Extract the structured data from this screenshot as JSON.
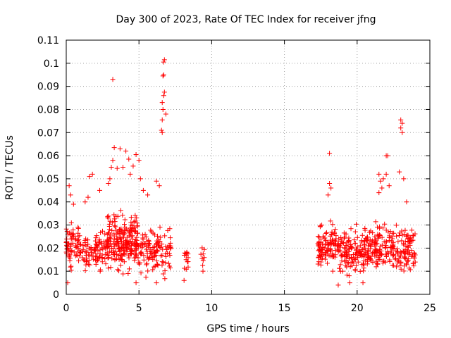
{
  "chart_data": {
    "type": "scatter",
    "title": "Day 300 of 2023, Rate Of TEC Index for receiver jfng",
    "xlabel": "GPS time / hours",
    "ylabel": "ROTI / TECUs",
    "xlim": [
      0,
      25
    ],
    "ylim": [
      0,
      0.11
    ],
    "xticks": [
      0,
      5,
      10,
      15,
      20,
      25
    ],
    "yticks": [
      0,
      0.01,
      0.02,
      0.03,
      0.04,
      0.05,
      0.06,
      0.07,
      0.08,
      0.09,
      0.1,
      0.11
    ],
    "grid": true,
    "marker": "+",
    "color": "#ff0000",
    "clusters": [
      {
        "x_range": [
          0.0,
          1.0
        ],
        "y_range": [
          0.007,
          0.035
        ],
        "count": 70
      },
      {
        "x_range": [
          1.1,
          2.2
        ],
        "y_range": [
          0.008,
          0.03
        ],
        "count": 60
      },
      {
        "x_range": [
          2.2,
          3.0
        ],
        "y_range": [
          0.008,
          0.032
        ],
        "count": 45
      },
      {
        "x_range": [
          2.8,
          5.0
        ],
        "y_range": [
          0.007,
          0.04
        ],
        "count": 220
      },
      {
        "x_range": [
          5.0,
          7.2
        ],
        "y_range": [
          0.006,
          0.033
        ],
        "count": 120
      },
      {
        "x_range": [
          8.0,
          8.4
        ],
        "y_range": [
          0.009,
          0.025
        ],
        "count": 14
      },
      {
        "x_range": [
          9.2,
          9.5
        ],
        "y_range": [
          0.011,
          0.024
        ],
        "count": 8
      },
      {
        "x_range": [
          17.3,
          19.0
        ],
        "y_range": [
          0.007,
          0.036
        ],
        "count": 130
      },
      {
        "x_range": [
          19.0,
          21.0
        ],
        "y_range": [
          0.006,
          0.033
        ],
        "count": 150
      },
      {
        "x_range": [
          21.0,
          24.0
        ],
        "y_range": [
          0.006,
          0.035
        ],
        "count": 200
      }
    ],
    "outliers": [
      {
        "x": 0.1,
        "y": 0.005
      },
      {
        "x": 0.2,
        "y": 0.047
      },
      {
        "x": 0.3,
        "y": 0.043
      },
      {
        "x": 0.5,
        "y": 0.039
      },
      {
        "x": 1.3,
        "y": 0.04
      },
      {
        "x": 1.5,
        "y": 0.042
      },
      {
        "x": 1.6,
        "y": 0.051
      },
      {
        "x": 1.8,
        "y": 0.052
      },
      {
        "x": 2.3,
        "y": 0.045
      },
      {
        "x": 2.9,
        "y": 0.048
      },
      {
        "x": 3.0,
        "y": 0.05
      },
      {
        "x": 3.1,
        "y": 0.055
      },
      {
        "x": 3.2,
        "y": 0.058
      },
      {
        "x": 3.3,
        "y": 0.0635
      },
      {
        "x": 3.5,
        "y": 0.0545
      },
      {
        "x": 3.2,
        "y": 0.093
      },
      {
        "x": 3.7,
        "y": 0.063
      },
      {
        "x": 3.9,
        "y": 0.055
      },
      {
        "x": 4.1,
        "y": 0.062
      },
      {
        "x": 4.3,
        "y": 0.0585
      },
      {
        "x": 4.4,
        "y": 0.052
      },
      {
        "x": 4.6,
        "y": 0.0555
      },
      {
        "x": 4.8,
        "y": 0.0605
      },
      {
        "x": 5.0,
        "y": 0.058
      },
      {
        "x": 5.1,
        "y": 0.05
      },
      {
        "x": 5.3,
        "y": 0.045
      },
      {
        "x": 5.6,
        "y": 0.043
      },
      {
        "x": 6.2,
        "y": 0.049
      },
      {
        "x": 6.4,
        "y": 0.047
      },
      {
        "x": 6.55,
        "y": 0.071
      },
      {
        "x": 6.6,
        "y": 0.0755
      },
      {
        "x": 6.65,
        "y": 0.08
      },
      {
        "x": 6.7,
        "y": 0.086
      },
      {
        "x": 6.75,
        "y": 0.0875
      },
      {
        "x": 6.6,
        "y": 0.083
      },
      {
        "x": 6.85,
        "y": 0.078
      },
      {
        "x": 6.65,
        "y": 0.0945
      },
      {
        "x": 6.7,
        "y": 0.095
      },
      {
        "x": 6.7,
        "y": 0.1005
      },
      {
        "x": 6.75,
        "y": 0.1015
      },
      {
        "x": 6.6,
        "y": 0.07
      },
      {
        "x": 18.1,
        "y": 0.061
      },
      {
        "x": 18.1,
        "y": 0.048
      },
      {
        "x": 18.2,
        "y": 0.046
      },
      {
        "x": 18.0,
        "y": 0.043
      },
      {
        "x": 21.5,
        "y": 0.052
      },
      {
        "x": 21.6,
        "y": 0.049
      },
      {
        "x": 21.7,
        "y": 0.046
      },
      {
        "x": 21.5,
        "y": 0.044
      },
      {
        "x": 21.8,
        "y": 0.05
      },
      {
        "x": 22.0,
        "y": 0.06
      },
      {
        "x": 22.1,
        "y": 0.06
      },
      {
        "x": 22.0,
        "y": 0.052
      },
      {
        "x": 22.2,
        "y": 0.047
      },
      {
        "x": 23.0,
        "y": 0.0755
      },
      {
        "x": 23.1,
        "y": 0.074
      },
      {
        "x": 23.0,
        "y": 0.072
      },
      {
        "x": 23.1,
        "y": 0.07
      },
      {
        "x": 22.9,
        "y": 0.053
      },
      {
        "x": 23.2,
        "y": 0.05
      },
      {
        "x": 23.4,
        "y": 0.04
      },
      {
        "x": 9.4,
        "y": 0.01
      },
      {
        "x": 8.1,
        "y": 0.006
      },
      {
        "x": 4.8,
        "y": 0.005
      },
      {
        "x": 6.2,
        "y": 0.005
      },
      {
        "x": 19.5,
        "y": 0.005
      },
      {
        "x": 20.4,
        "y": 0.005
      },
      {
        "x": 18.7,
        "y": 0.004
      }
    ]
  }
}
